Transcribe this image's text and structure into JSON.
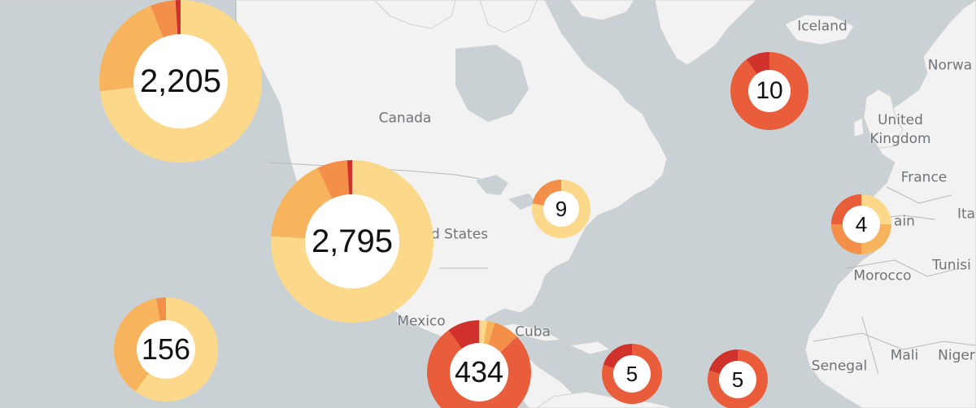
{
  "map": {
    "country_labels": [
      {
        "name": "country-label-canada",
        "text": "Canada"
      },
      {
        "name": "country-label-united-states",
        "text": "d States"
      },
      {
        "name": "country-label-mexico",
        "text": "Mexico"
      },
      {
        "name": "country-label-cuba",
        "text": "Cuba"
      },
      {
        "name": "country-label-iceland",
        "text": "Iceland"
      },
      {
        "name": "country-label-norway",
        "text": "Norwa"
      },
      {
        "name": "country-label-united-kingdom",
        "text": "United\nKingdom"
      },
      {
        "name": "country-label-france",
        "text": "France"
      },
      {
        "name": "country-label-spain",
        "text": "ain"
      },
      {
        "name": "country-label-italy",
        "text": "Ita"
      },
      {
        "name": "country-label-tunisia",
        "text": "Tunisi"
      },
      {
        "name": "country-label-morocco",
        "text": "Morocco"
      },
      {
        "name": "country-label-senegal",
        "text": "Senegal"
      },
      {
        "name": "country-label-mali",
        "text": "Mali"
      },
      {
        "name": "country-label-niger",
        "text": "Niger"
      }
    ],
    "cluster_colors": [
      "#fcd98a",
      "#f7b45d",
      "#f38f48",
      "#ea5d3b",
      "#d0312a"
    ],
    "clusters": [
      {
        "name": "cluster-2205",
        "count": "2,205",
        "shares": [
          0.73,
          0.21,
          0.05,
          0.0,
          0.01
        ]
      },
      {
        "name": "cluster-2795",
        "count": "2,795",
        "shares": [
          0.76,
          0.17,
          0.06,
          0.0,
          0.01
        ]
      },
      {
        "name": "cluster-156",
        "count": "156",
        "shares": [
          0.6,
          0.37,
          0.03,
          0.0,
          0.0
        ]
      },
      {
        "name": "cluster-9",
        "count": "9",
        "shares": [
          0.78,
          0.0,
          0.22,
          0.0,
          0.0
        ]
      },
      {
        "name": "cluster-434",
        "count": "434",
        "shares": [
          0.025,
          0.025,
          0.08,
          0.77,
          0.1
        ]
      },
      {
        "name": "cluster-10",
        "count": "10",
        "shares": [
          0.0,
          0.0,
          0.0,
          0.9,
          0.1
        ]
      },
      {
        "name": "cluster-4",
        "count": "4",
        "shares": [
          0.25,
          0.25,
          0.25,
          0.25,
          0.0
        ]
      },
      {
        "name": "cluster-5-caribbean",
        "count": "5",
        "shares": [
          0.0,
          0.0,
          0.0,
          0.8,
          0.2
        ]
      },
      {
        "name": "cluster-5-east",
        "count": "5",
        "shares": [
          0.0,
          0.0,
          0.0,
          0.8,
          0.2
        ]
      }
    ]
  }
}
